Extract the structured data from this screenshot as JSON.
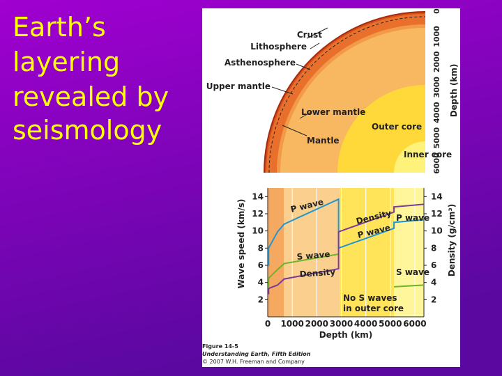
{
  "title": [
    "Earth’s",
    "layering",
    "revealed by",
    "seismology"
  ],
  "figure": {
    "labels": [
      "Crust",
      "Lithosphere",
      "Asthenosphere",
      "Upper mantle",
      "Lower mantle",
      "Mantle",
      "Outer core",
      "Inner core"
    ],
    "depth_axis_label": "Depth (km)",
    "depth_ticks": [
      0,
      1000,
      2000,
      3000,
      4000,
      5000,
      6000
    ],
    "caption": [
      "Figure 14-5",
      "Understanding Earth, Fifth Edition",
      "© 2007 W.H. Freeman and Company"
    ]
  },
  "chart_data": {
    "type": "line",
    "x": [
      0,
      35,
      35,
      400,
      670,
      2890,
      2890,
      5150,
      5150,
      6371
    ],
    "series": [
      {
        "name": "P wave",
        "color": "#1e96d2",
        "values": [
          6,
          6,
          8,
          9.9,
          10.8,
          13.7,
          8.0,
          10.3,
          11.0,
          11.3
        ]
      },
      {
        "name": "S wave",
        "color": "#6ab42a",
        "values": [
          3.4,
          3.4,
          4.5,
          5.5,
          6.2,
          7.3,
          null,
          null,
          3.5,
          3.7
        ]
      },
      {
        "name": "Density",
        "color": "#7a3a9a",
        "axis": "y2",
        "values": [
          2.7,
          2.7,
          3.3,
          3.7,
          4.4,
          5.6,
          9.9,
          12.2,
          12.8,
          13.1
        ]
      }
    ],
    "annotations": [
      "P wave",
      "S wave",
      "Density",
      "Density",
      "P wave",
      "P wave",
      "S wave",
      "No S waves",
      "in outer core"
    ],
    "xlabel": "Depth (km)",
    "ylabel": "Wave speed (km/s)",
    "y2label": "Density (g/cm³)",
    "xlim": [
      0,
      6371
    ],
    "xticks": [
      0,
      1000,
      2000,
      3000,
      4000,
      5000,
      6000
    ],
    "ylim": [
      0,
      15
    ],
    "yticks": [
      2,
      4,
      6,
      8,
      10,
      12,
      14
    ],
    "y2lim": [
      0,
      15
    ],
    "y2ticks": [
      2,
      4,
      6,
      8,
      10,
      12,
      14
    ],
    "grid": true
  }
}
